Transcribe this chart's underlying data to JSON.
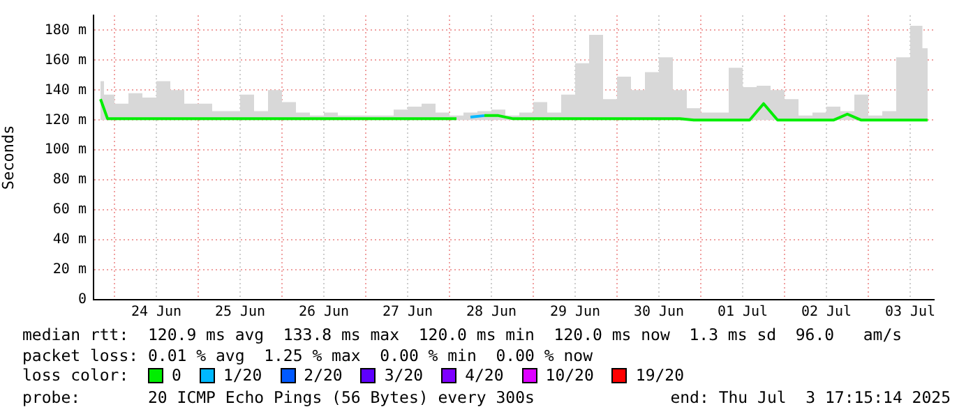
{
  "chart_data": {
    "type": "line",
    "ylabel": "Seconds",
    "legend_title": "loss color:",
    "x": [
      "2025-06-23T20:00",
      "2025-06-23T22:00",
      "2025-06-24T02:00",
      "2025-06-24T06:00",
      "2025-06-24T10:00",
      "2025-06-24T14:00",
      "2025-06-24T18:00",
      "2025-06-24T22:00",
      "2025-06-25T02:00",
      "2025-06-25T06:00",
      "2025-06-25T10:00",
      "2025-06-25T14:00",
      "2025-06-25T18:00",
      "2025-06-25T22:00",
      "2025-06-26T02:00",
      "2025-06-26T06:00",
      "2025-06-26T10:00",
      "2025-06-26T14:00",
      "2025-06-26T18:00",
      "2025-06-26T22:00",
      "2025-06-27T02:00",
      "2025-06-27T06:00",
      "2025-06-27T10:00",
      "2025-06-27T14:00",
      "2025-06-27T18:00",
      "2025-06-27T22:00",
      "2025-06-28T02:00",
      "2025-06-28T06:00",
      "2025-06-28T10:00",
      "2025-06-28T14:00",
      "2025-06-28T18:00",
      "2025-06-28T22:00",
      "2025-06-29T02:00",
      "2025-06-29T06:00",
      "2025-06-29T10:00",
      "2025-06-29T14:00",
      "2025-06-29T18:00",
      "2025-06-29T22:00",
      "2025-06-30T02:00",
      "2025-06-30T06:00",
      "2025-06-30T10:00",
      "2025-06-30T14:00",
      "2025-06-30T18:00",
      "2025-06-30T22:00",
      "2025-07-01T02:00",
      "2025-07-01T06:00",
      "2025-07-01T10:00",
      "2025-07-01T14:00",
      "2025-07-01T18:00",
      "2025-07-01T22:00",
      "2025-07-02T02:00",
      "2025-07-02T06:00",
      "2025-07-02T10:00",
      "2025-07-02T14:00",
      "2025-07-02T18:00",
      "2025-07-02T22:00",
      "2025-07-03T02:00",
      "2025-07-03T06:00",
      "2025-07-03T10:00",
      "2025-07-03T14:00",
      "2025-07-03T17:00"
    ],
    "series": [
      {
        "name": "0",
        "color": "#00ee00",
        "values": [
          134,
          121,
          121,
          121,
          121,
          121,
          121,
          121,
          121,
          121,
          121,
          121,
          121,
          121,
          121,
          121,
          121,
          121,
          121,
          121,
          121,
          121,
          121,
          121,
          121,
          121,
          121,
          null,
          123,
          123,
          121,
          121,
          121,
          121,
          121,
          121,
          121,
          121,
          121,
          121,
          121,
          121,
          121,
          120,
          120,
          120,
          120,
          120,
          131,
          120,
          120,
          120,
          120,
          120,
          124,
          120,
          120,
          120,
          120,
          120,
          120
        ],
        "lower": [
          120,
          120,
          120,
          120,
          120,
          120,
          120,
          120,
          120,
          120,
          120,
          120,
          120,
          120,
          120,
          120,
          120,
          120,
          120,
          120,
          120,
          120,
          120,
          120,
          120,
          120,
          120,
          120,
          120,
          120,
          120,
          120,
          120,
          120,
          120,
          120,
          120,
          120,
          120,
          120,
          120,
          120,
          120,
          120,
          120,
          120,
          120,
          120,
          120,
          120,
          120,
          120,
          120,
          120,
          120,
          120,
          120,
          120,
          120,
          120,
          120
        ],
        "upper": [
          146,
          137,
          131,
          138,
          135,
          146,
          140,
          131,
          131,
          126,
          126,
          137,
          126,
          140,
          132,
          125,
          123,
          125,
          123,
          123,
          123,
          123,
          127,
          129,
          131,
          125,
          123,
          125,
          126,
          127,
          123,
          125,
          132,
          125,
          137,
          158,
          177,
          134,
          149,
          140,
          152,
          162,
          140,
          128,
          125,
          125,
          155,
          142,
          143,
          140,
          134,
          123,
          125,
          129,
          126,
          137,
          123,
          126,
          162,
          183,
          168
        ]
      },
      {
        "name": "1/20",
        "color": "#00b8ff",
        "values": [
          null,
          null,
          null,
          null,
          null,
          null,
          null,
          null,
          null,
          null,
          null,
          null,
          null,
          null,
          null,
          null,
          null,
          null,
          null,
          null,
          null,
          null,
          null,
          null,
          null,
          null,
          null,
          122,
          123,
          null,
          null,
          null,
          null,
          null,
          null,
          null,
          null,
          null,
          null,
          null,
          null,
          null,
          null,
          null,
          null,
          null,
          null,
          null,
          null,
          null,
          null,
          null,
          null,
          null,
          null,
          null,
          null,
          null,
          null,
          null,
          null
        ]
      },
      {
        "name": "2/20",
        "color": "#0059ff",
        "values": [
          null,
          null,
          null,
          null,
          null,
          null,
          null,
          null,
          null,
          null,
          null,
          null,
          null,
          null,
          null,
          null,
          null,
          null,
          null,
          null,
          null,
          null,
          null,
          null,
          null,
          null,
          null,
          null,
          null,
          null,
          null,
          null,
          null,
          null,
          null,
          null,
          null,
          null,
          null,
          null,
          null,
          null,
          null,
          null,
          null,
          null,
          null,
          null,
          null,
          null,
          null,
          null,
          null,
          null,
          null,
          null,
          null,
          null,
          null,
          null,
          null
        ]
      },
      {
        "name": "3/20",
        "color": "#5e00ff",
        "values": [
          null,
          null,
          null,
          null,
          null,
          null,
          null,
          null,
          null,
          null,
          null,
          null,
          null,
          null,
          null,
          null,
          null,
          null,
          null,
          null,
          null,
          null,
          null,
          null,
          null,
          null,
          null,
          null,
          null,
          null,
          null,
          null,
          null,
          null,
          null,
          null,
          null,
          null,
          null,
          null,
          null,
          null,
          null,
          null,
          null,
          null,
          null,
          null,
          null,
          null,
          null,
          null,
          null,
          null,
          null,
          null,
          null,
          null,
          null,
          null,
          null
        ]
      },
      {
        "name": "4/20",
        "color": "#7e00ff",
        "values": [
          null,
          null,
          null,
          null,
          null,
          null,
          null,
          null,
          null,
          null,
          null,
          null,
          null,
          null,
          null,
          null,
          null,
          null,
          null,
          null,
          null,
          null,
          null,
          null,
          null,
          null,
          null,
          null,
          null,
          null,
          null,
          null,
          null,
          null,
          null,
          null,
          null,
          null,
          null,
          null,
          null,
          null,
          null,
          null,
          null,
          null,
          null,
          null,
          null,
          null,
          null,
          null,
          null,
          null,
          null,
          null,
          null,
          null,
          null,
          null,
          null
        ]
      },
      {
        "name": "10/20",
        "color": "#dd00ff",
        "values": [
          null,
          null,
          null,
          null,
          null,
          null,
          null,
          null,
          null,
          null,
          null,
          null,
          null,
          null,
          null,
          null,
          null,
          null,
          null,
          null,
          null,
          null,
          null,
          null,
          null,
          null,
          null,
          null,
          null,
          null,
          null,
          null,
          null,
          null,
          null,
          null,
          null,
          null,
          null,
          null,
          null,
          null,
          null,
          null,
          null,
          null,
          null,
          null,
          null,
          null,
          null,
          null,
          null,
          null,
          null,
          null,
          null,
          null,
          null,
          null,
          null
        ]
      },
      {
        "name": "19/20",
        "color": "#ff0000",
        "values": [
          null,
          null,
          null,
          null,
          null,
          null,
          null,
          null,
          null,
          null,
          null,
          null,
          null,
          null,
          null,
          null,
          null,
          null,
          null,
          null,
          null,
          null,
          null,
          null,
          null,
          null,
          null,
          null,
          null,
          null,
          null,
          null,
          null,
          null,
          null,
          null,
          null,
          null,
          null,
          null,
          null,
          null,
          null,
          null,
          null,
          null,
          null,
          null,
          null,
          null,
          null,
          null,
          null,
          null,
          null,
          null,
          null,
          null,
          null,
          null,
          null
        ]
      }
    ],
    "xlim": [
      "2025-06-23T18:00",
      "2025-07-03T18:48"
    ],
    "xticks": [
      {
        "value": "2025-06-24T00:00",
        "label": null
      },
      {
        "value": "2025-06-24T12:00",
        "label": "24 Jun"
      },
      {
        "value": "2025-06-25T00:00",
        "label": null
      },
      {
        "value": "2025-06-25T12:00",
        "label": "25 Jun"
      },
      {
        "value": "2025-06-26T00:00",
        "label": null
      },
      {
        "value": "2025-06-26T12:00",
        "label": "26 Jun"
      },
      {
        "value": "2025-06-27T00:00",
        "label": null
      },
      {
        "value": "2025-06-27T12:00",
        "label": "27 Jun"
      },
      {
        "value": "2025-06-28T00:00",
        "label": null
      },
      {
        "value": "2025-06-28T12:00",
        "label": "28 Jun"
      },
      {
        "value": "2025-06-29T00:00",
        "label": null
      },
      {
        "value": "2025-06-29T12:00",
        "label": "29 Jun"
      },
      {
        "value": "2025-06-30T00:00",
        "label": null
      },
      {
        "value": "2025-06-30T12:00",
        "label": "30 Jun"
      },
      {
        "value": "2025-07-01T00:00",
        "label": null
      },
      {
        "value": "2025-07-01T12:00",
        "label": "01 Jul"
      },
      {
        "value": "2025-07-02T00:00",
        "label": null
      },
      {
        "value": "2025-07-02T12:00",
        "label": "02 Jul"
      },
      {
        "value": "2025-07-03T00:00",
        "label": null
      },
      {
        "value": "2025-07-03T12:00",
        "label": "03 Jul"
      }
    ],
    "ylim": [
      0,
      190
    ],
    "yticks": [
      0,
      {
        "value": 20,
        "label": "20 m"
      },
      {
        "value": 40,
        "label": "40 m"
      },
      {
        "value": 60,
        "label": "60 m"
      },
      {
        "value": 80,
        "label": "80 m"
      },
      {
        "value": 100,
        "label": "100 m"
      },
      {
        "value": 120,
        "label": "120 m"
      },
      {
        "value": 140,
        "label": "140 m"
      },
      {
        "value": 160,
        "label": "160 m"
      },
      {
        "value": 180,
        "label": "180 m"
      }
    ],
    "grid": true,
    "legend": "bottom",
    "marker": "none",
    "line_style": "solid",
    "annotations": [
      "median rtt:  120.9 ms avg  133.8 ms max  120.0 ms min  120.0 ms now  1.3 ms sd  96.0   am/s",
      "packet loss: 0.01 % avg  1.25 % max  0.00 % min  0.00 % now",
      "probe:       20 ICMP Echo Pings (56 Bytes) every 300s",
      "end: Thu Jul  3 17:15:14 2025"
    ]
  }
}
